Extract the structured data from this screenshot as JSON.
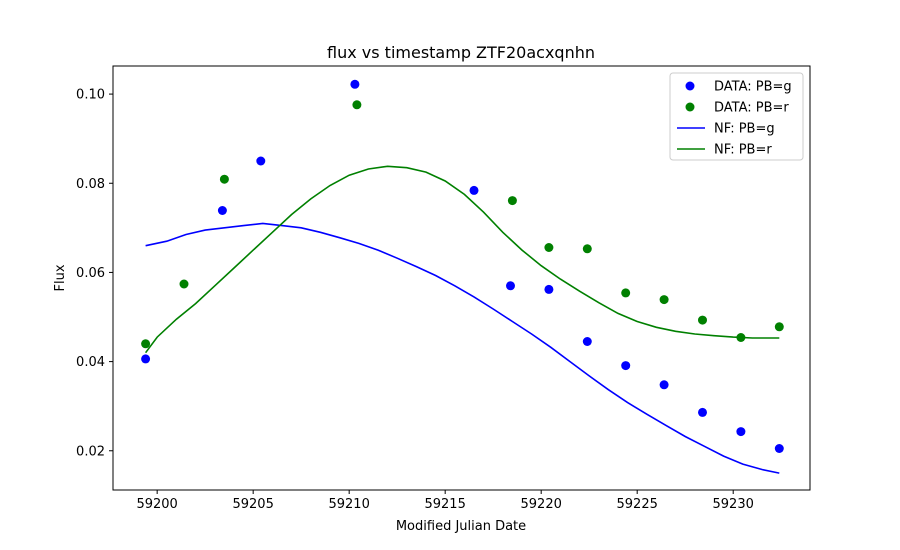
{
  "chart_data": {
    "type": "scatter",
    "title": "flux vs timestamp ZTF20acxqnhn",
    "xlabel": "Modified Julian Date",
    "ylabel": "Flux",
    "xlim": [
      59197.7,
      59234.0
    ],
    "ylim": [
      0.0112,
      0.1063
    ],
    "xticks": [
      59200,
      59205,
      59210,
      59215,
      59220,
      59225,
      59230
    ],
    "yticks": [
      0.02,
      0.04,
      0.06,
      0.08,
      0.1
    ],
    "xtick_labels": [
      "59200",
      "59205",
      "59210",
      "59215",
      "59220",
      "59225",
      "59230"
    ],
    "ytick_labels": [
      "0.02",
      "0.04",
      "0.06",
      "0.08",
      "0.10"
    ],
    "grid": false,
    "legend_position": "top-right",
    "series": [
      {
        "name": "DATA: PB=g",
        "kind": "scatter",
        "color": "#0000ff",
        "x": [
          59199.4,
          59203.4,
          59205.4,
          59210.3,
          59216.5,
          59218.4,
          59220.4,
          59222.4,
          59224.4,
          59226.4,
          59228.4,
          59230.4,
          59232.4
        ],
        "y": [
          0.0406,
          0.0739,
          0.085,
          0.1022,
          0.0784,
          0.057,
          0.0562,
          0.0445,
          0.0391,
          0.0348,
          0.0286,
          0.0243,
          0.0205
        ]
      },
      {
        "name": "DATA: PB=r",
        "kind": "scatter",
        "color": "#008000",
        "x": [
          59199.4,
          59201.4,
          59203.5,
          59210.4,
          59218.5,
          59220.4,
          59222.4,
          59224.4,
          59226.4,
          59228.4,
          59230.4,
          59232.4
        ],
        "y": [
          0.044,
          0.0574,
          0.0809,
          0.0976,
          0.0761,
          0.0656,
          0.0653,
          0.0554,
          0.0539,
          0.0493,
          0.0454,
          0.0478
        ]
      },
      {
        "name": "NF: PB=g",
        "kind": "line",
        "color": "#0000ff",
        "x": [
          59199.4,
          59200.5,
          59201.5,
          59202.5,
          59203.5,
          59204.5,
          59205.5,
          59206.5,
          59207.5,
          59208.5,
          59209.5,
          59210.5,
          59211.5,
          59212.5,
          59213.5,
          59214.5,
          59215.5,
          59216.5,
          59217.5,
          59218.5,
          59219.5,
          59220.5,
          59221.5,
          59222.5,
          59223.5,
          59224.5,
          59225.5,
          59226.5,
          59227.5,
          59228.5,
          59229.5,
          59230.5,
          59231.5,
          59232.4
        ],
        "y": [
          0.066,
          0.067,
          0.0685,
          0.0695,
          0.07,
          0.0705,
          0.071,
          0.0705,
          0.07,
          0.069,
          0.0678,
          0.0665,
          0.065,
          0.0632,
          0.0613,
          0.0593,
          0.057,
          0.0545,
          0.0518,
          0.049,
          0.0462,
          0.0432,
          0.04,
          0.0368,
          0.0337,
          0.0308,
          0.0282,
          0.0257,
          0.0232,
          0.021,
          0.0188,
          0.017,
          0.0158,
          0.015
        ]
      },
      {
        "name": "NF: PB=r",
        "kind": "line",
        "color": "#008000",
        "x": [
          59199.4,
          59200.0,
          59201.0,
          59202.0,
          59203.0,
          59204.0,
          59205.0,
          59206.0,
          59207.0,
          59208.0,
          59209.0,
          59210.0,
          59211.0,
          59212.0,
          59213.0,
          59214.0,
          59215.0,
          59216.0,
          59217.0,
          59218.0,
          59219.0,
          59220.0,
          59221.0,
          59222.0,
          59223.0,
          59224.0,
          59225.0,
          59226.0,
          59227.0,
          59228.0,
          59229.0,
          59230.0,
          59231.0,
          59232.4
        ],
        "y": [
          0.042,
          0.0455,
          0.0495,
          0.053,
          0.057,
          0.061,
          0.065,
          0.069,
          0.073,
          0.0765,
          0.0795,
          0.0818,
          0.0832,
          0.0838,
          0.0835,
          0.0825,
          0.0805,
          0.0775,
          0.0735,
          0.069,
          0.065,
          0.0615,
          0.0585,
          0.0558,
          0.0532,
          0.0508,
          0.049,
          0.0477,
          0.0468,
          0.0462,
          0.0458,
          0.0455,
          0.0453,
          0.0453
        ]
      }
    ]
  }
}
